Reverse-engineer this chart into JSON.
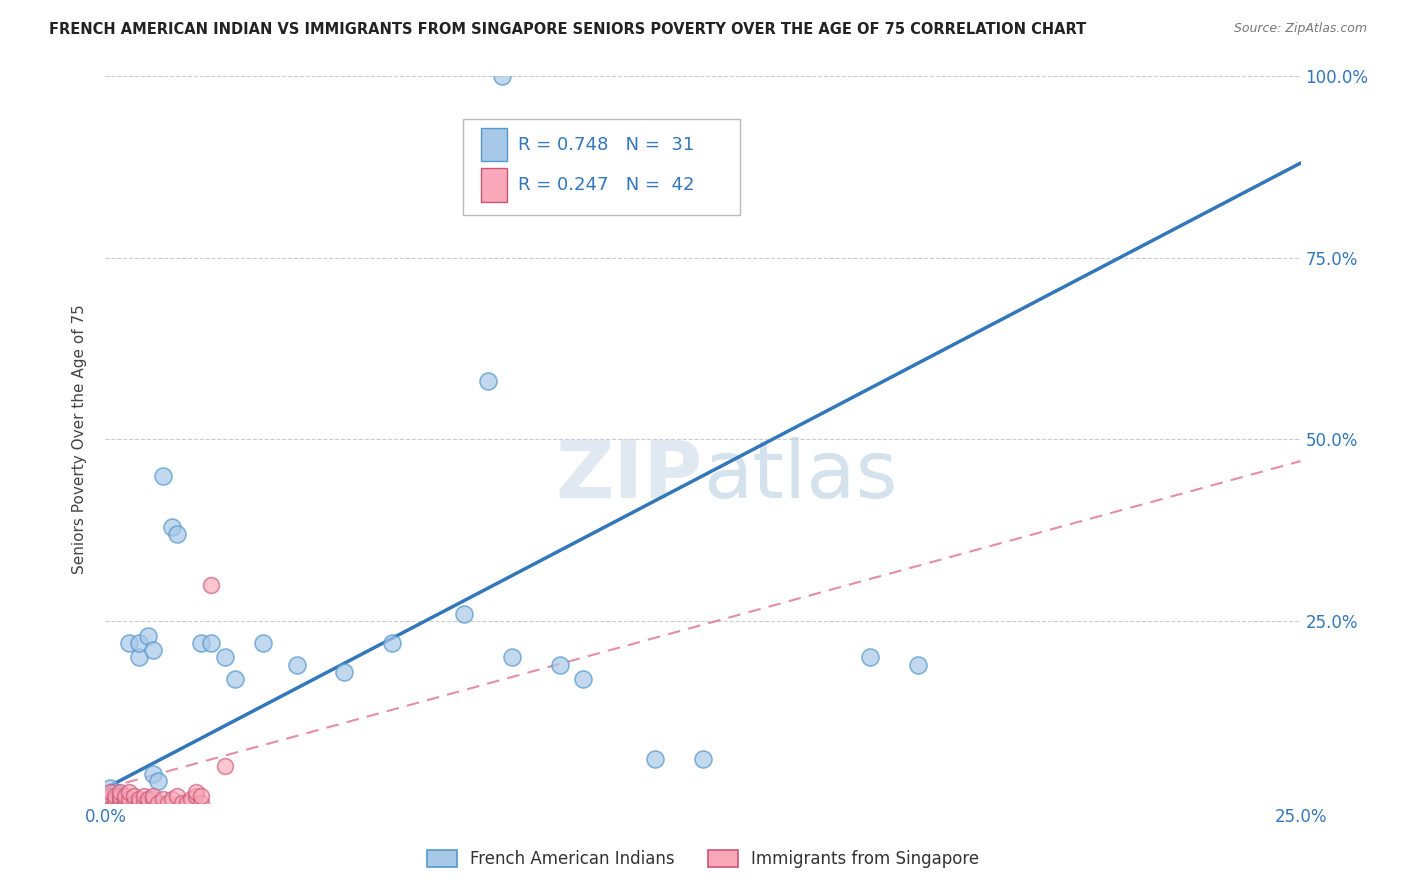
{
  "title": "FRENCH AMERICAN INDIAN VS IMMIGRANTS FROM SINGAPORE SENIORS POVERTY OVER THE AGE OF 75 CORRELATION CHART",
  "source": "Source: ZipAtlas.com",
  "ylabel": "Seniors Poverty Over the Age of 75",
  "xlim": [
    0,
    0.25
  ],
  "ylim": [
    0,
    1.0
  ],
  "xtick_positions": [
    0.0,
    0.05,
    0.1,
    0.15,
    0.2,
    0.25
  ],
  "xtick_labels": [
    "0.0%",
    "",
    "",
    "",
    "",
    "25.0%"
  ],
  "ytick_positions": [
    0.0,
    0.25,
    0.5,
    0.75,
    1.0
  ],
  "ytick_labels": [
    "",
    "25.0%",
    "50.0%",
    "75.0%",
    "100.0%"
  ],
  "watermark": "ZIPatlas",
  "blue_color": "#a8c8e8",
  "blue_edge": "#5599cc",
  "pink_color": "#f8a8b8",
  "pink_edge": "#cc5577",
  "line_blue": "#3377bb",
  "line_pink": "#dd6688",
  "blue_scatter": [
    [
      0.001,
      0.02
    ],
    [
      0.002,
      0.015
    ],
    [
      0.003,
      0.01
    ],
    [
      0.005,
      0.22
    ],
    [
      0.007,
      0.2
    ],
    [
      0.007,
      0.22
    ],
    [
      0.009,
      0.23
    ],
    [
      0.01,
      0.21
    ],
    [
      0.01,
      0.04
    ],
    [
      0.011,
      0.03
    ],
    [
      0.012,
      0.45
    ],
    [
      0.014,
      0.38
    ],
    [
      0.015,
      0.37
    ],
    [
      0.02,
      0.22
    ],
    [
      0.022,
      0.22
    ],
    [
      0.025,
      0.2
    ],
    [
      0.027,
      0.17
    ],
    [
      0.033,
      0.22
    ],
    [
      0.04,
      0.19
    ],
    [
      0.05,
      0.18
    ],
    [
      0.06,
      0.22
    ],
    [
      0.075,
      0.26
    ],
    [
      0.085,
      0.2
    ],
    [
      0.095,
      0.19
    ],
    [
      0.1,
      0.17
    ],
    [
      0.115,
      0.06
    ],
    [
      0.125,
      0.06
    ],
    [
      0.08,
      0.58
    ],
    [
      0.16,
      0.2
    ],
    [
      0.17,
      0.19
    ],
    [
      0.083,
      1.0
    ]
  ],
  "pink_scatter": [
    [
      0.0,
      0.0
    ],
    [
      0.0,
      0.005
    ],
    [
      0.001,
      0.0
    ],
    [
      0.001,
      0.01
    ],
    [
      0.001,
      0.015
    ],
    [
      0.002,
      0.0
    ],
    [
      0.002,
      0.005
    ],
    [
      0.002,
      0.01
    ],
    [
      0.003,
      0.0
    ],
    [
      0.003,
      0.005
    ],
    [
      0.003,
      0.01
    ],
    [
      0.003,
      0.015
    ],
    [
      0.004,
      0.0
    ],
    [
      0.004,
      0.005
    ],
    [
      0.004,
      0.01
    ],
    [
      0.005,
      0.0
    ],
    [
      0.005,
      0.005
    ],
    [
      0.005,
      0.015
    ],
    [
      0.006,
      0.0
    ],
    [
      0.006,
      0.01
    ],
    [
      0.007,
      0.0
    ],
    [
      0.007,
      0.005
    ],
    [
      0.008,
      0.0
    ],
    [
      0.008,
      0.01
    ],
    [
      0.009,
      0.0
    ],
    [
      0.009,
      0.005
    ],
    [
      0.01,
      0.005
    ],
    [
      0.01,
      0.01
    ],
    [
      0.011,
      0.0
    ],
    [
      0.012,
      0.005
    ],
    [
      0.013,
      0.0
    ],
    [
      0.014,
      0.005
    ],
    [
      0.015,
      0.01
    ],
    [
      0.016,
      0.0
    ],
    [
      0.017,
      0.0
    ],
    [
      0.018,
      0.005
    ],
    [
      0.019,
      0.01
    ],
    [
      0.019,
      0.015
    ],
    [
      0.02,
      0.0
    ],
    [
      0.02,
      0.01
    ],
    [
      0.022,
      0.3
    ],
    [
      0.025,
      0.05
    ]
  ],
  "blue_trend_x": [
    0.0,
    0.25
  ],
  "blue_trend_y": [
    0.02,
    0.88
  ],
  "pink_trend_x": [
    0.0,
    0.25
  ],
  "pink_trend_y": [
    0.02,
    0.47
  ],
  "grid_color": "#cccccc",
  "bg_color": "#ffffff",
  "title_color": "#222222",
  "axis_label_color": "#444444",
  "right_tick_color": "#3377bb",
  "watermark_color": "#c5d8ea",
  "legend_label1": "R = 0.748   N =  31",
  "legend_label2": "R = 0.247   N =  42",
  "bottom_label1": "French American Indians",
  "bottom_label2": "Immigrants from Singapore"
}
